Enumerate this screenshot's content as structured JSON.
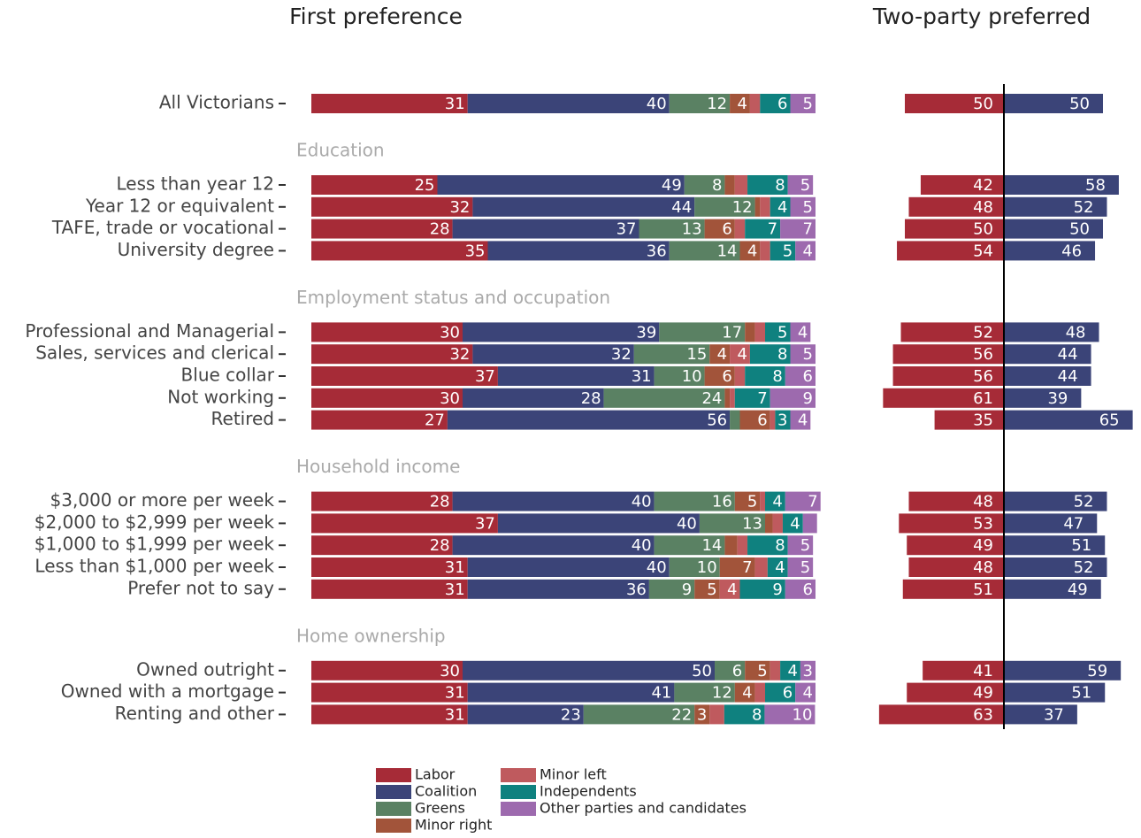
{
  "chart_data": [
    {
      "type": "stacked-bar",
      "title": "First preference",
      "groups": [
        {
          "name": null,
          "categories": [
            "All Victorians"
          ]
        },
        {
          "name": "Education",
          "categories": [
            "Less than year 12",
            "Year 12 or equivalent",
            "TAFE, trade or vocational",
            "University degree"
          ]
        },
        {
          "name": "Employment status and occupation",
          "categories": [
            "Professional and Managerial",
            "Sales, services and clerical",
            "Blue collar",
            "Not working",
            "Retired"
          ]
        },
        {
          "name": "Household income",
          "categories": [
            "$3,000 or more per week",
            "$2,000 to $2,999 per week",
            "$1,000 to $1,999 per week",
            "Less than $1,000 per week",
            "Prefer not to say"
          ]
        },
        {
          "name": "Home ownership",
          "categories": [
            "Owned outright",
            "Owned with a mortgage",
            "Renting and other"
          ]
        }
      ],
      "series": [
        {
          "name": "Labor",
          "color": "#a62b37",
          "values": [
            31,
            25,
            32,
            28,
            35,
            30,
            32,
            37,
            30,
            27,
            28,
            37,
            28,
            31,
            31,
            30,
            31,
            31
          ]
        },
        {
          "name": "Coalition",
          "color": "#3b4478",
          "values": [
            40,
            49,
            44,
            37,
            36,
            39,
            32,
            31,
            28,
            56,
            40,
            40,
            40,
            40,
            36,
            50,
            41,
            23
          ]
        },
        {
          "name": "Greens",
          "color": "#5a8163",
          "values": [
            12,
            8,
            12,
            13,
            14,
            17,
            15,
            10,
            24,
            2,
            16,
            13,
            14,
            10,
            9,
            6,
            12,
            22
          ]
        },
        {
          "name": "Minor right",
          "color": "#a2543a",
          "values": [
            4,
            2,
            1,
            6,
            4,
            2,
            4,
            6,
            1,
            6,
            5,
            1.5,
            2.5,
            7,
            5,
            5,
            4,
            3
          ]
        },
        {
          "name": "Minor left",
          "color": "#bf5a5e",
          "values": [
            2,
            2.5,
            2,
            2,
            2,
            2,
            4,
            2,
            1,
            1,
            1,
            2,
            2,
            2.5,
            4,
            2,
            2,
            2.9
          ]
        },
        {
          "name": "Independents",
          "color": "#0f817f",
          "values": [
            6,
            8,
            4,
            7,
            5,
            5,
            8,
            8,
            7,
            3,
            4,
            4,
            8,
            4,
            9,
            4,
            6,
            8
          ]
        },
        {
          "name": "Other parties and candidates",
          "color": "#9d6aae",
          "values": [
            5,
            5,
            5,
            7,
            4,
            4,
            5,
            6,
            9,
            4,
            7,
            2.8,
            5,
            5,
            6,
            3,
            4,
            10
          ]
        }
      ]
    },
    {
      "type": "diverging-bar",
      "title": "Two-party preferred",
      "series": [
        {
          "color": "#a62b37",
          "values": [
            50,
            42,
            48,
            50,
            54,
            52,
            56,
            56,
            61,
            35,
            48,
            53,
            49,
            48,
            51,
            41,
            49,
            63
          ]
        },
        {
          "color": "#3b4478",
          "values": [
            50,
            58,
            52,
            50,
            46,
            48,
            44,
            44,
            39,
            65,
            52,
            47,
            51,
            52,
            49,
            59,
            51,
            37
          ]
        }
      ]
    }
  ]
}
